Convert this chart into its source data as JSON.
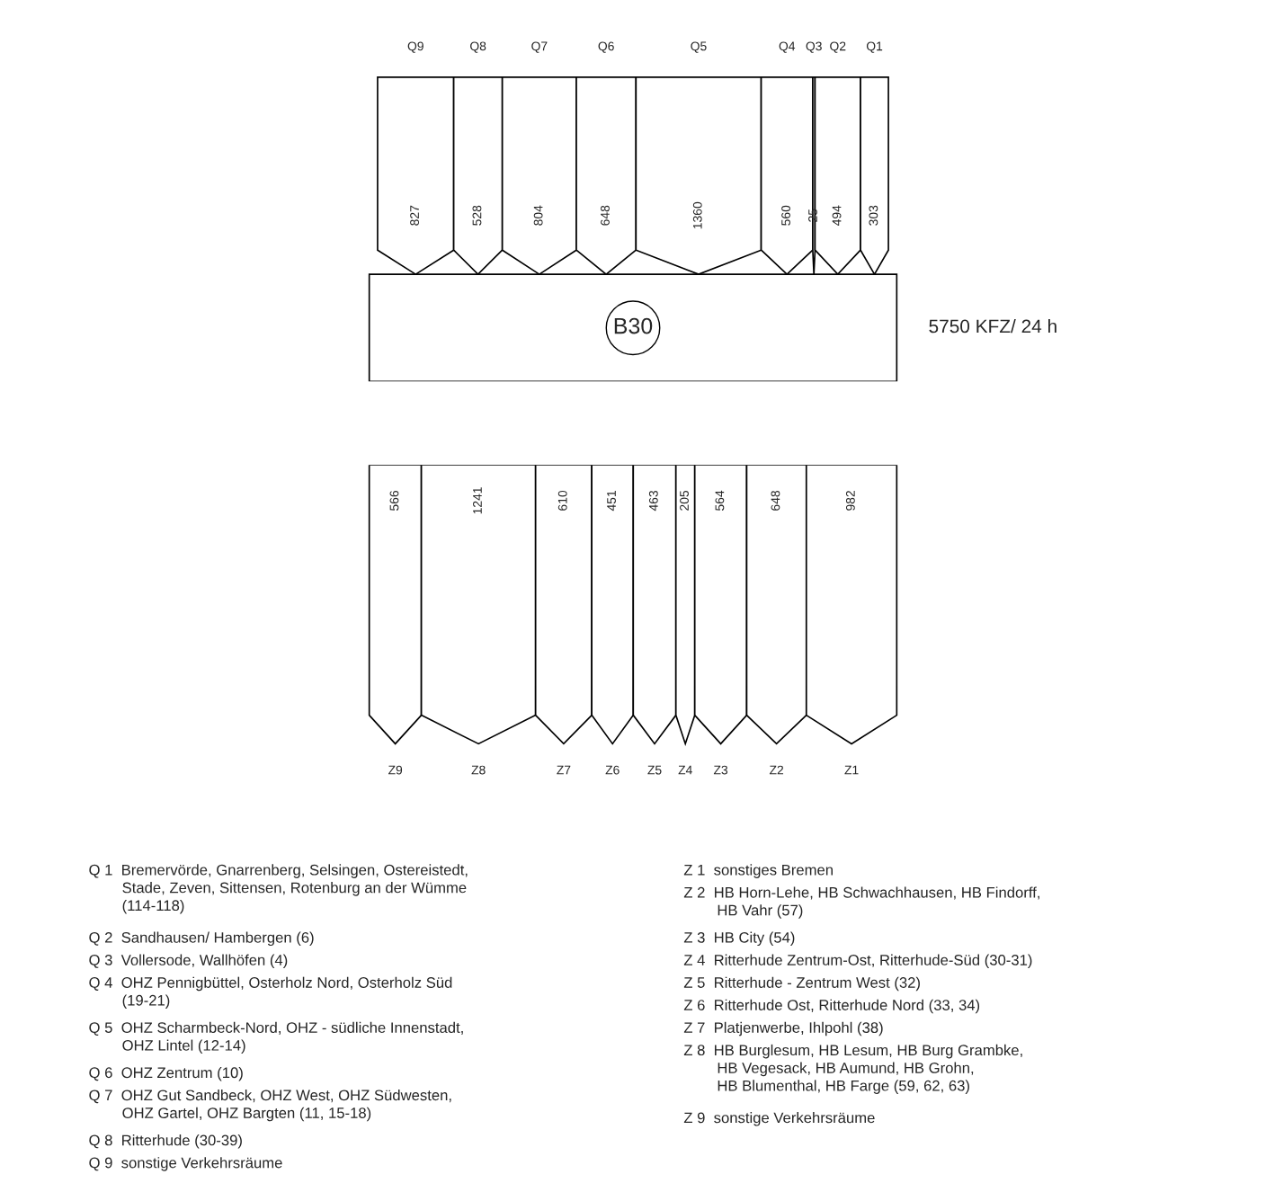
{
  "chart_data": [
    {
      "type": "other",
      "title": "B30",
      "subtitle": "5750 KFZ/ 24 h",
      "categories": [
        "Q9",
        "Q8",
        "Q7",
        "Q6",
        "Q5",
        "Q4",
        "Q3",
        "Q2",
        "Q1"
      ],
      "values": [
        827,
        528,
        804,
        648,
        1360,
        560,
        25,
        494,
        303
      ],
      "data_labels": true,
      "annotations": [
        "Q 1  Bremervörde, Gnarrenberg, Selsingen, Ostereistedt,\n        Stade, Zeven, Sittensen, Rotenburg an der Wümme\n        (114-118)",
        "Q 2  Sandhausen/ Hambergen (6)",
        "Q 3  Vollersode, Wallhöfen (4)",
        "Q 4  OHZ Pennigbüttel, Osterholz Nord, Osterholz Süd\n        (19-21)",
        "Q 5  OHZ Scharmbeck-Nord, OHZ - südliche Innenstadt,\n        OHZ Lintel (12-14)",
        "Q 6  OHZ Zentrum (10)",
        "Q 7  OHZ Gut Sandbeck, OHZ West, OHZ Südwesten,\n        OHZ Gartel, OHZ Bargten (11, 15-18)",
        "Q 8  Ritterhude (30-39)",
        "Q 9  sonstige Verkehrsräume"
      ]
    },
    {
      "type": "other",
      "categories": [
        "Z9",
        "Z8",
        "Z7",
        "Z6",
        "Z5",
        "Z4",
        "Z3",
        "Z2",
        "Z1"
      ],
      "values": [
        566,
        1241,
        610,
        451,
        463,
        205,
        564,
        648,
        982
      ],
      "data_labels": true,
      "annotations": [
        "Z 1  sonstiges Bremen",
        "Z 2  HB Horn-Lehe, HB Schwachhausen, HB Findorff,\n        HB Vahr (57)",
        "Z 3  HB City (54)",
        "Z 4  Ritterhude Zentrum-Ost, Ritterhude-Süd (30-31)",
        "Z 5  Ritterhude - Zentrum West (32)",
        "Z 6  Ritterhude Ost, Ritterhude Nord (33, 34)",
        "Z 7  Platjenwerbe, Ihlpohl (38)",
        "Z 8  HB Burglesum, HB Lesum, HB Burg Grambke,\n        HB Vegesack, HB Aumund, HB Grohn,\n        HB Blumenthal, HB Farge (59, 62, 63)",
        "Z 9  sonstige Verkehrsräume"
      ]
    }
  ]
}
